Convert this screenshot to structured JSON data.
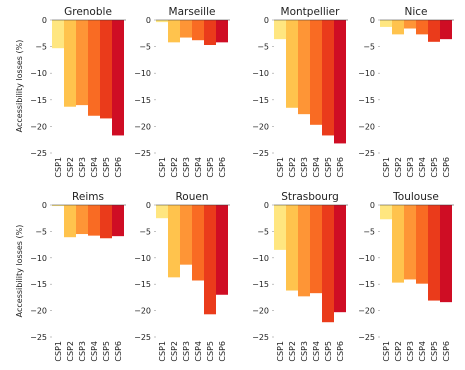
{
  "ylabel": "Accessibility losses (%)",
  "colors": [
    "#ffe680",
    "#ffc34d",
    "#fe9536",
    "#f96b23",
    "#ea3b1b",
    "#cf0d24"
  ],
  "chart_data": [
    {
      "type": "bar",
      "title": "Grenoble",
      "categories": [
        "CSP1",
        "CSP2",
        "CSP3",
        "CSP4",
        "CSP5",
        "CSP6"
      ],
      "values": [
        -5.3,
        -16.3,
        -16.0,
        -18.0,
        -18.5,
        -21.7
      ],
      "ylim": [
        -25,
        0
      ],
      "yticks": [
        "0",
        "−5",
        "−10",
        "−15",
        "−20",
        "−25"
      ],
      "ylabel": "Accessibility losses (%)"
    },
    {
      "type": "bar",
      "title": "Marseille",
      "categories": [
        "CSP1",
        "CSP2",
        "CSP3",
        "CSP4",
        "CSP5",
        "CSP6"
      ],
      "values": [
        -0.4,
        -4.2,
        -3.3,
        -3.8,
        -4.7,
        -4.2
      ],
      "ylim": [
        -25,
        0
      ],
      "yticks": [
        "0",
        "−5",
        "−10",
        "−15",
        "−20",
        "−25"
      ]
    },
    {
      "type": "bar",
      "title": "Montpellier",
      "categories": [
        "CSP1",
        "CSP2",
        "CSP3",
        "CSP4",
        "CSP5",
        "CSP6"
      ],
      "values": [
        -3.6,
        -16.5,
        -17.7,
        -19.7,
        -21.7,
        -23.2
      ],
      "ylim": [
        -25,
        0
      ],
      "yticks": [
        "0",
        "−5",
        "−10",
        "−15",
        "−20",
        "−25"
      ]
    },
    {
      "type": "bar",
      "title": "Nice",
      "categories": [
        "CSP1",
        "CSP2",
        "CSP3",
        "CSP4",
        "CSP5",
        "CSP6"
      ],
      "values": [
        -1.3,
        -2.7,
        -1.6,
        -2.7,
        -4.1,
        -3.6
      ],
      "ylim": [
        -25,
        0
      ],
      "yticks": [
        "0",
        "−5",
        "−10",
        "−15",
        "−20",
        "−25"
      ]
    },
    {
      "type": "bar",
      "title": "Reims",
      "categories": [
        "CSP1",
        "CSP2",
        "CSP3",
        "CSP4",
        "CSP5",
        "CSP6"
      ],
      "values": [
        -0.2,
        -6.1,
        -5.5,
        -5.8,
        -6.3,
        -5.9
      ],
      "ylim": [
        -25,
        0
      ],
      "yticks": [
        "0",
        "−5",
        "−10",
        "−15",
        "−20",
        "−25"
      ],
      "ylabel": "Accessibility losses (%)"
    },
    {
      "type": "bar",
      "title": "Rouen",
      "categories": [
        "CSP1",
        "CSP2",
        "CSP3",
        "CSP4",
        "CSP5",
        "CSP6"
      ],
      "values": [
        -2.5,
        -13.7,
        -11.3,
        -14.3,
        -20.7,
        -17.0
      ],
      "ylim": [
        -25,
        0
      ],
      "yticks": [
        "0",
        "−5",
        "−10",
        "−15",
        "−20",
        "−25"
      ]
    },
    {
      "type": "bar",
      "title": "Strasbourg",
      "categories": [
        "CSP1",
        "CSP2",
        "CSP3",
        "CSP4",
        "CSP5",
        "CSP6"
      ],
      "values": [
        -8.5,
        -16.2,
        -17.3,
        -16.7,
        -22.2,
        -20.3
      ],
      "ylim": [
        -25,
        0
      ],
      "yticks": [
        "0",
        "−5",
        "−10",
        "−15",
        "−20",
        "−25"
      ]
    },
    {
      "type": "bar",
      "title": "Toulouse",
      "categories": [
        "CSP1",
        "CSP2",
        "CSP3",
        "CSP4",
        "CSP5",
        "CSP6"
      ],
      "values": [
        -2.7,
        -14.7,
        -14.1,
        -14.9,
        -18.1,
        -18.4
      ],
      "ylim": [
        -25,
        0
      ],
      "yticks": [
        "0",
        "−5",
        "−10",
        "−15",
        "−20",
        "−25"
      ]
    }
  ]
}
